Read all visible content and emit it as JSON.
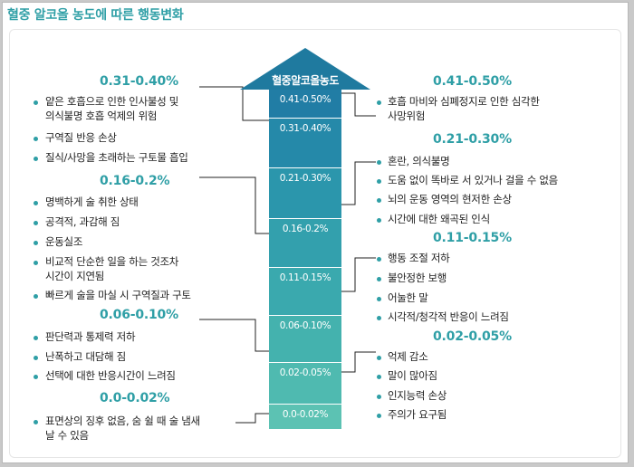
{
  "title": "혈중 알코올 농도에 따른 행동변화",
  "arrow_label": "혈중알코올농도",
  "scale_segments": [
    "0.41-0.50%",
    "0.31-0.40%",
    "0.21-0.30%",
    "0.16-0.2%",
    "0.11-0.15%",
    "0.06-0.10%",
    "0.02-0.05%",
    "0.0-0.02%"
  ],
  "left_groups": [
    {
      "heading": "0.31-0.40%",
      "items": [
        "얕은 호흡으로 인한 인사불성 및",
        "의식불명 호흡 억제의 위험",
        "구역질 반응 손상",
        "질식/사망을 초래하는 구토물 흡입"
      ]
    },
    {
      "heading": "0.16-0.2%",
      "items": [
        "명백하게 술 취한 상태",
        "공격적, 과감해 짐",
        "운동실조",
        "비교적 단순한 일을 하는 것조차",
        "시간이 지연됨",
        "빠르게 술을 마실 시 구역질과 구토"
      ]
    },
    {
      "heading": "0.06-0.10%",
      "items": [
        "판단력과 통제력 저하",
        "난폭하고 대담해 짐",
        "선택에 대한 반응시간이 느려짐"
      ]
    },
    {
      "heading": "0.0-0.02%",
      "items": [
        "표면상의 징후 없음, 숨 쉴 때 술 냄새",
        "날 수 있음"
      ]
    }
  ],
  "right_groups": [
    {
      "heading": "0.41-0.50%",
      "items": [
        "호흡 마비와 심폐정지로 인한 심각한",
        "사망위험"
      ]
    },
    {
      "heading": "0.21-0.30%",
      "items": [
        "혼란, 의식불명",
        "도움 없이 똑바로 서 있거나 걸을 수 없음",
        "뇌의 운동 영역의 현저한 손상",
        "시간에 대한 왜곡된 인식"
      ]
    },
    {
      "heading": "0.11-0.15%",
      "items": [
        "행동 조절 저하",
        "불안정한 보행",
        "어눌한 말",
        "시각적/청각적 반응이 느려짐"
      ]
    },
    {
      "heading": "0.02-0.05%",
      "items": [
        "억제 감소",
        "말이 많아짐",
        "인지능력 손상",
        "주의가 요구됨"
      ]
    }
  ],
  "colors": {
    "accent": "#2f9fa6",
    "arrow_top": "#1f7a9f",
    "arrow_bottom": "#5cc2b3"
  }
}
